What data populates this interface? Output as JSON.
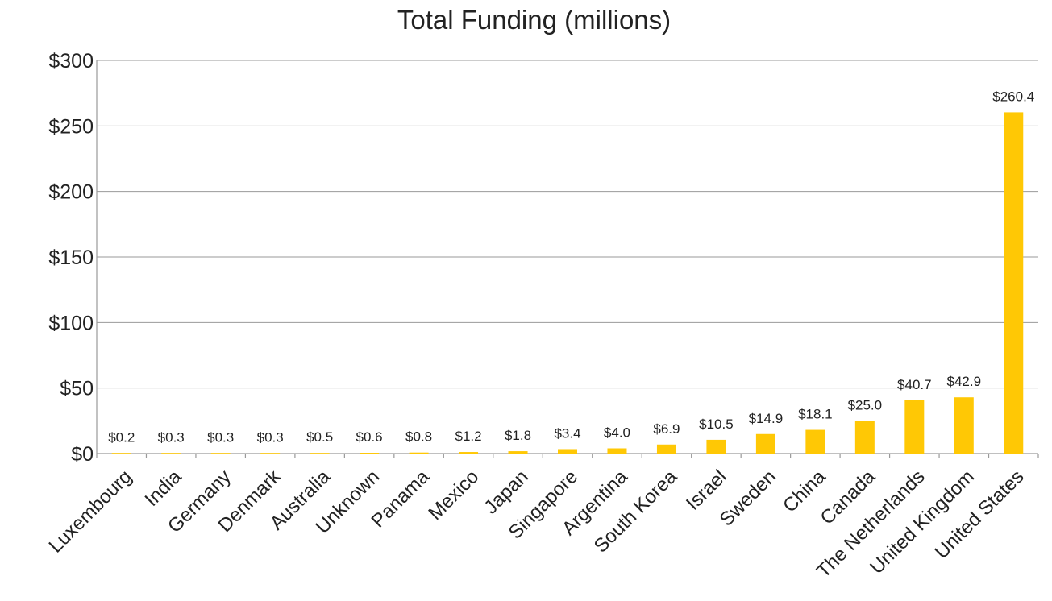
{
  "chart_data": {
    "type": "bar",
    "title": "Total Funding (millions)",
    "xlabel": "",
    "ylabel": "",
    "categories": [
      "Luxembourg",
      "India",
      "Germany",
      "Denmark",
      "Australia",
      "Unknown",
      "Panama",
      "Mexico",
      "Japan",
      "Singapore",
      "Argentina",
      "South Korea",
      "Israel",
      "Sweden",
      "China",
      "Canada",
      "The Netherlands",
      "United Kingdom",
      "United States"
    ],
    "values": [
      0.2,
      0.3,
      0.3,
      0.3,
      0.5,
      0.6,
      0.8,
      1.2,
      1.8,
      3.4,
      4.0,
      6.9,
      10.5,
      14.9,
      18.1,
      25.0,
      40.7,
      42.9,
      260.4
    ],
    "data_labels": [
      "$0.2",
      "$0.3",
      "$0.3",
      "$0.3",
      "$0.5",
      "$0.6",
      "$0.8",
      "$1.2",
      "$1.8",
      "$3.4",
      "$4.0",
      "$6.9",
      "$10.5",
      "$14.9",
      "$18.1",
      "$25.0",
      "$40.7",
      "$42.9",
      "$260.4"
    ],
    "ylim": [
      0,
      300
    ],
    "yticks": [
      0,
      50,
      100,
      150,
      200,
      250,
      300
    ],
    "ytick_labels": [
      "$0",
      "$50",
      "$100",
      "$150",
      "$200",
      "$250",
      "$300"
    ],
    "grid": true,
    "legend": "none",
    "bar_color": "#FFC805",
    "grid_color": "#9A9A9A"
  }
}
